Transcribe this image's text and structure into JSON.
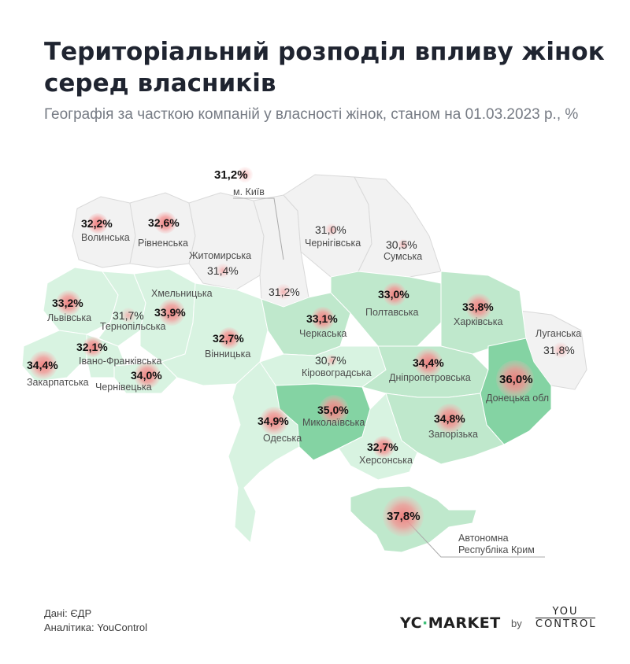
{
  "title": "Територіальний розподіл впливу жінок серед власників",
  "subtitle": "Географія за часткою компаній у власності жінок, станом на 01.03.2023 р., %",
  "regions": [
    {
      "id": "kyiv-city",
      "name": "м. Київ",
      "value": "31,2%"
    },
    {
      "id": "volyn",
      "name": "Волинська",
      "value": "32,2%"
    },
    {
      "id": "rivne",
      "name": "Рівненська",
      "value": "32,6%"
    },
    {
      "id": "zhytomyr",
      "name": "Житомирська",
      "value": "31,4%"
    },
    {
      "id": "chernihiv",
      "name": "Чернігівська",
      "value": "31,0%"
    },
    {
      "id": "sumy",
      "name": "Сумська",
      "value": "30,5%"
    },
    {
      "id": "kyiv-oblast",
      "name": "",
      "value": "31,2%"
    },
    {
      "id": "lviv",
      "name": "Львівська",
      "value": "33,2%"
    },
    {
      "id": "khmelnytskyi",
      "name": "Хмельницька",
      "value": "33,9%"
    },
    {
      "id": "ternopil",
      "name": "Тернопільська",
      "value": "31,7%"
    },
    {
      "id": "poltava",
      "name": "Полтавська",
      "value": "33,0%"
    },
    {
      "id": "kharkiv",
      "name": "Харківська",
      "value": "33,8%"
    },
    {
      "id": "cherkasy",
      "name": "Черкаська",
      "value": "33,1%"
    },
    {
      "id": "vinnytsia",
      "name": "Вінницька",
      "value": "32,7%"
    },
    {
      "id": "ivano-frankivsk",
      "name": "Івано-Франківська",
      "value": "32,1%"
    },
    {
      "id": "luhansk",
      "name": "Луганська",
      "value": "31,8%"
    },
    {
      "id": "zakarpattia",
      "name": "Закарпатська",
      "value": "34,4%"
    },
    {
      "id": "chernivtsi",
      "name": "Чернівецька",
      "value": "34,0%"
    },
    {
      "id": "kirovohrad",
      "name": "Кіровоградська",
      "value": "30,7%"
    },
    {
      "id": "dnipro",
      "name": "Дніпропетровська",
      "value": "34,4%"
    },
    {
      "id": "donetsk",
      "name": "Донецька обл",
      "value": "36,0%"
    },
    {
      "id": "odesa",
      "name": "Одеська",
      "value": "34,9%"
    },
    {
      "id": "mykolaiv",
      "name": "Миколаївська",
      "value": "35,0%"
    },
    {
      "id": "zaporizhzhia",
      "name": "Запорізька",
      "value": "34,8%"
    },
    {
      "id": "kherson",
      "name": "Херсонська",
      "value": "32,7%"
    },
    {
      "id": "crimea",
      "name": "Автономна Республіка Крим",
      "value": "37,8%",
      "name_line1": "Автономна",
      "name_line2": "Республіка Крим"
    }
  ],
  "footer": {
    "source": "Дані: ЄДР",
    "analytics": "Аналітика: YouControl"
  },
  "brands": {
    "market_prefix": "YC",
    "market_accent": "·",
    "market_name": "MARKET",
    "by": "by",
    "youcontrol_top": "YOU",
    "youcontrol_bottom": "CONTROL"
  },
  "colors": {
    "bubble": "#f08a8a",
    "region_light": "#e6f7ec",
    "region_medium": "#bfe8cc",
    "region_dark": "#84d3a3",
    "region_none": "#f2f2f2"
  }
}
